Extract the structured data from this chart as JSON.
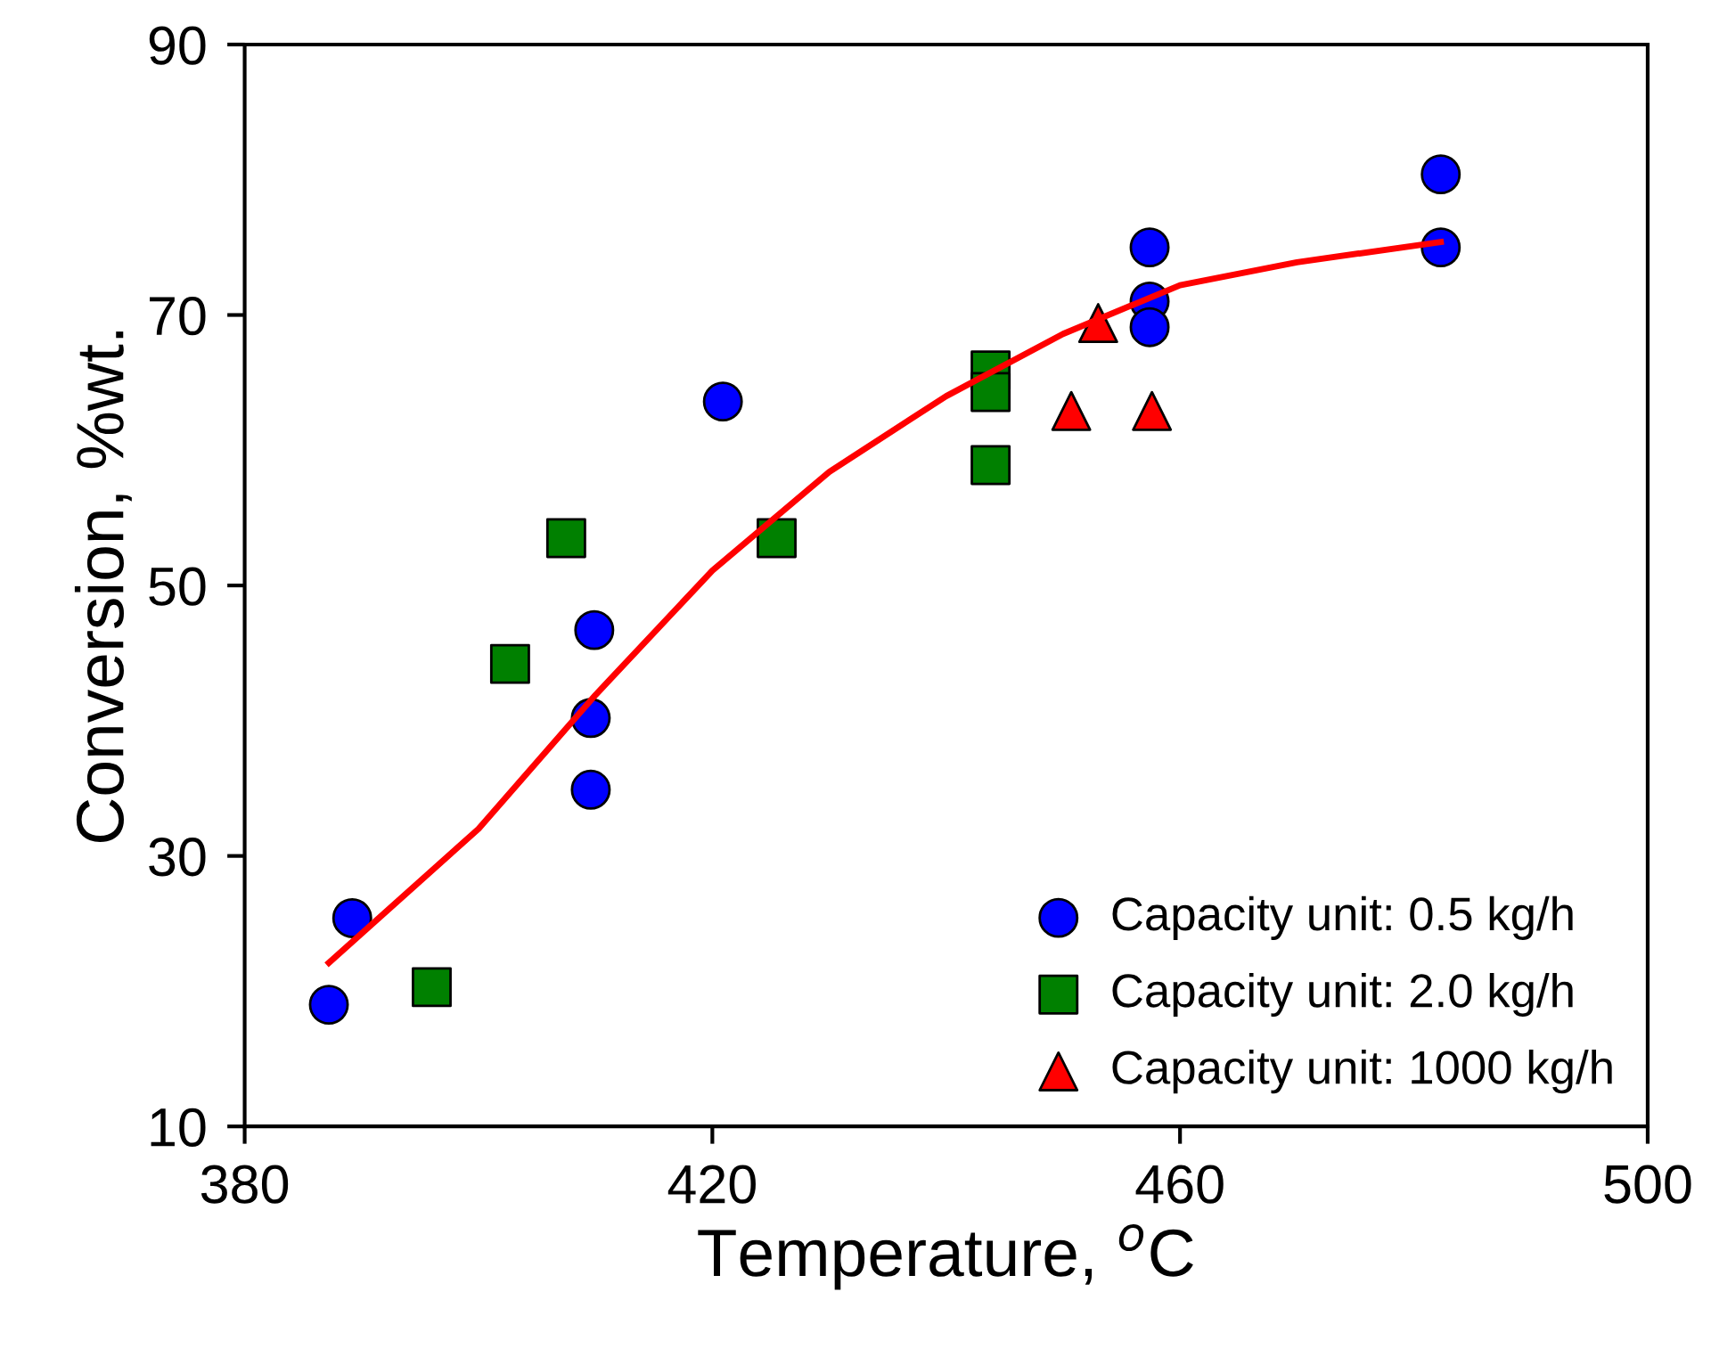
{
  "chart_data": {
    "type": "scatter",
    "xlabel": "Temperature, $^{o}$C",
    "ylabel": "Conversion, %wt.",
    "xlim": [
      380,
      500
    ],
    "xticks": [
      380,
      420,
      460,
      500
    ],
    "ylim": [
      10,
      90
    ],
    "yticks": [
      10,
      30,
      50,
      70,
      90
    ],
    "grid": false,
    "legend": "bottom right",
    "series": [
      {
        "name": "Capacity unit: 0.5 kg/h",
        "color": "#0000ff",
        "marker": "circle",
        "x": [
          387.2,
          389.2,
          409.6,
          409.6,
          409.9,
          420.9,
          457.4,
          457.4,
          457.4,
          482.3,
          482.3
        ],
        "values": [
          19,
          25.4,
          34.9,
          40.2,
          46.7,
          63.6,
          75.0,
          71.0,
          69.1,
          80.4,
          75.0
        ]
      },
      {
        "name": "Capacity unit: 2.0 kg/h",
        "color": "#008000",
        "marker": "square",
        "x": [
          396.0,
          402.7,
          407.5,
          425.5,
          443.8,
          443.8,
          443.8
        ],
        "values": [
          20.3,
          44.2,
          53.5,
          53.5,
          65.9,
          64.3,
          58.9
        ]
      },
      {
        "name": "Capacity unit: 1000 kg/h",
        "color": "#ff0000",
        "marker": "triangle",
        "x": [
          453.0,
          450.7,
          457.6
        ],
        "values": [
          69.4,
          62.9,
          62.9
        ]
      },
      {
        "type": "line",
        "color": "#ff0000",
        "marker": "none",
        "x": [
          387.2,
          400,
          410,
          420,
          430,
          440,
          450,
          460,
          470,
          482.3
        ],
        "values": [
          22.1,
          32.0,
          41.9,
          51.1,
          58.4,
          64.0,
          68.6,
          72.2,
          73.9,
          75.4
        ]
      }
    ]
  }
}
